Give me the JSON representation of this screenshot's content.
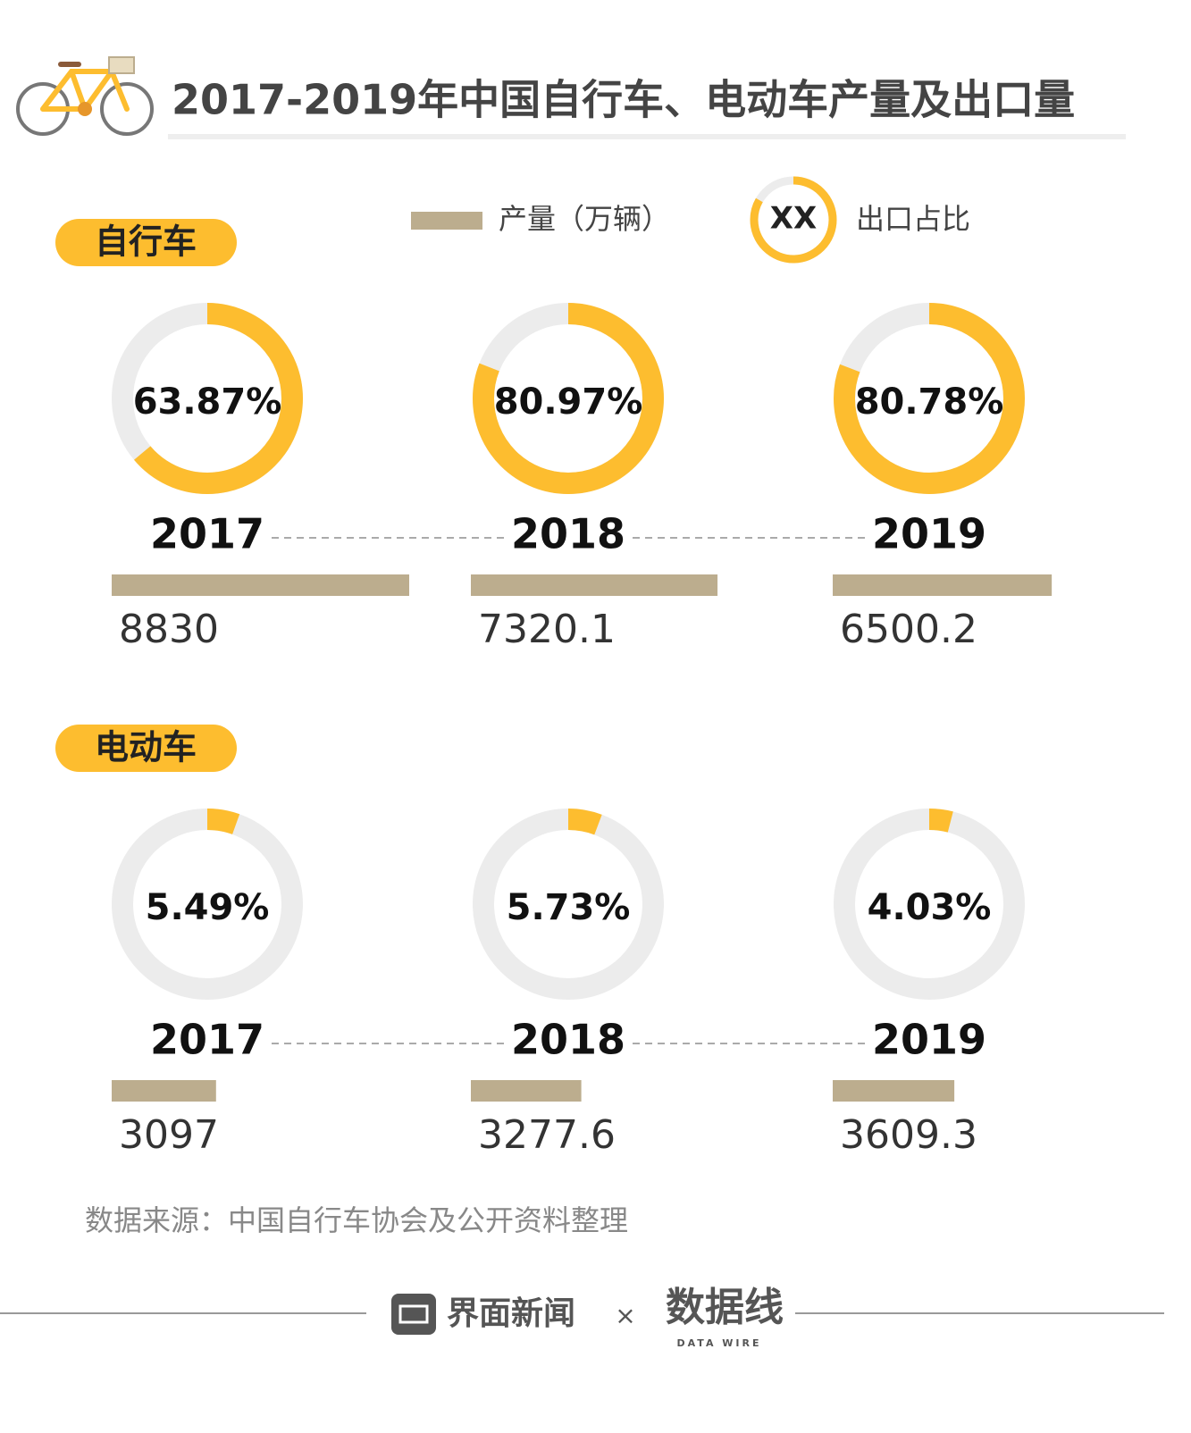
{
  "title": "2017-2019年中国自行车、电动车产量及出口量",
  "legend": {
    "bar": "产量（万辆）",
    "sample": "XX",
    "donut": "出口占比"
  },
  "colors": {
    "bar": "#bcad8e",
    "share": "#fdbd2f",
    "rest": "#ececec",
    "pill": "#fdbd2f"
  },
  "sections": [
    {
      "name": "自行车",
      "years": [
        "2017",
        "2018",
        "2019"
      ],
      "export_share": [
        63.87,
        80.97,
        80.78
      ],
      "export_share_labels": [
        "63.87%",
        "80.97%",
        "80.78%"
      ],
      "production": [
        8830,
        7320.1,
        6500.2
      ]
    },
    {
      "name": "电动车",
      "years": [
        "2017",
        "2018",
        "2019"
      ],
      "export_share": [
        5.49,
        5.73,
        4.03
      ],
      "export_share_labels": [
        "5.49%",
        "5.73%",
        "4.03%"
      ],
      "production": [
        3097,
        3277.6,
        3609.3
      ]
    }
  ],
  "source": "数据来源：中国自行车协会及公开资料整理",
  "footer": {
    "brand": "界面新闻",
    "cross": "×",
    "partner": "数据线",
    "partner_sub": "DATA WIRE"
  }
}
